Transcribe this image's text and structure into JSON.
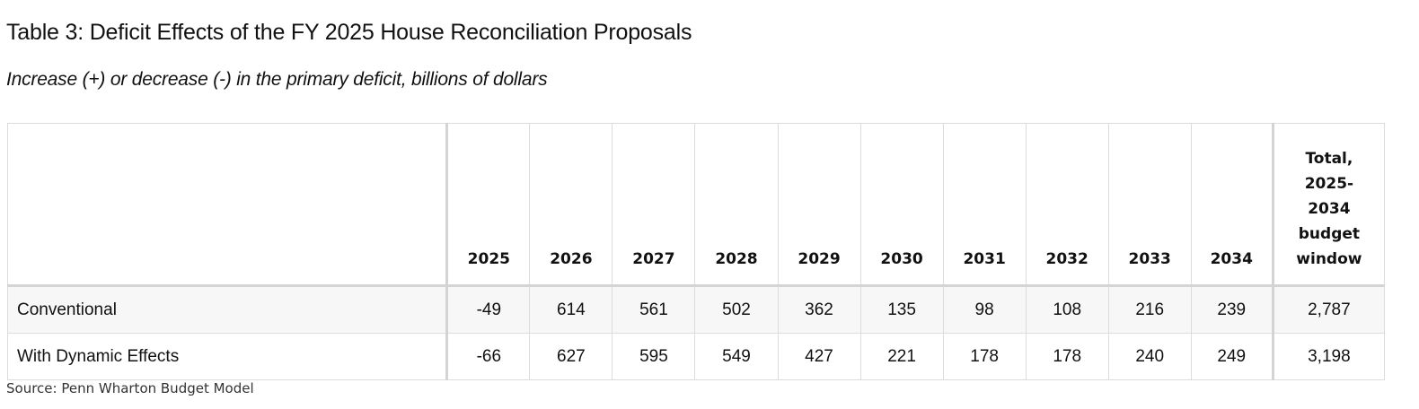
{
  "title": "Table 3: Deficit Effects of the FY 2025 House Reconciliation Proposals",
  "subtitle": "Increase (+) or decrease (-) in the primary deficit, billions of dollars",
  "table": {
    "headers": [
      "",
      "2025",
      "2026",
      "2027",
      "2028",
      "2029",
      "2030",
      "2031",
      "2032",
      "2033",
      "2034"
    ],
    "total_header_lines": [
      "Total,",
      "2025-",
      "2034",
      "budget",
      "window"
    ],
    "rows": [
      {
        "label": "Conventional",
        "values": [
          "-49",
          "614",
          "561",
          "502",
          "362",
          "135",
          "98",
          "108",
          "216",
          "239"
        ],
        "total": "2,787"
      },
      {
        "label": "With Dynamic Effects",
        "values": [
          "-66",
          "627",
          "595",
          "549",
          "427",
          "221",
          "178",
          "178",
          "240",
          "249"
        ],
        "total": "3,198"
      }
    ]
  },
  "source": "Source: Penn Wharton Budget Model"
}
